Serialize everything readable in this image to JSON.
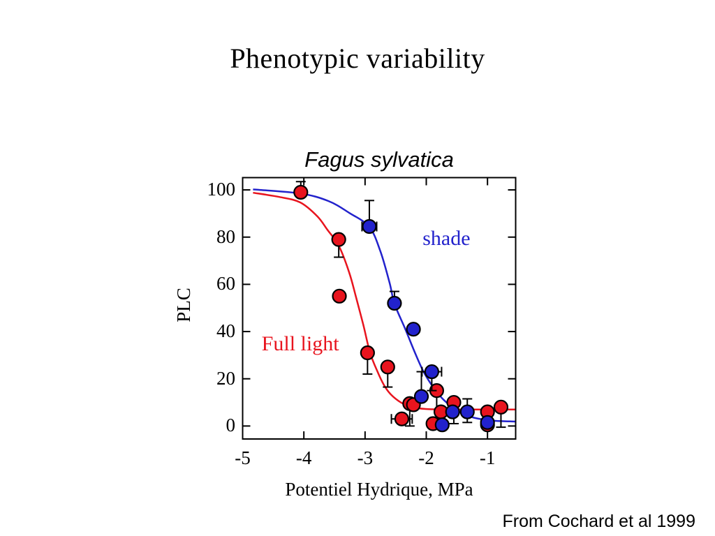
{
  "slide": {
    "title": "Phenotypic variability",
    "attribution": "From Cochard et al 1999"
  },
  "chart_data": {
    "type": "scatter",
    "title": "Fagus sylvatica",
    "xlabel": "Potentiel Hydrique, MPa",
    "ylabel": "PLC",
    "xlim": [
      -5,
      -0.54
    ],
    "ylim": [
      -5.5,
      105.2
    ],
    "x_ticks": [
      -5,
      -4,
      -3,
      -2,
      -1
    ],
    "y_ticks": [
      0,
      20,
      40,
      60,
      80,
      100
    ],
    "grid": false,
    "frame": "box-with-inward-ticks",
    "axis_color": "#000000",
    "annotations": [
      {
        "text": "shade",
        "color": "#2222cc",
        "x": -2.06,
        "y": 84.5
      },
      {
        "text": "Full light",
        "color": "#e8141e",
        "x": -4.69,
        "y": 39.7
      }
    ],
    "series": [
      {
        "name": "Full light",
        "color": "#e8141e",
        "marker": "circle",
        "points": [
          {
            "x": -4.05,
            "y": 99,
            "ehi": 4.5
          },
          {
            "x": -3.43,
            "y": 79,
            "elo": 7.5
          },
          {
            "x": -3.42,
            "y": 55
          },
          {
            "x": -2.96,
            "y": 31,
            "elo": 9
          },
          {
            "x": -2.63,
            "y": 25,
            "elo": 8.5
          },
          {
            "x": -2.4,
            "y": 3,
            "ex": 0.17
          },
          {
            "x": -2.27,
            "y": 9.5,
            "elo": 9.5
          },
          {
            "x": -2.21,
            "y": 9
          },
          {
            "x": -1.89,
            "y": 1
          },
          {
            "x": -1.83,
            "y": 15,
            "elo": 16
          },
          {
            "x": -1.76,
            "y": 6
          },
          {
            "x": -1.55,
            "y": 10,
            "elo": 9
          },
          {
            "x": -1.0,
            "y": 0.5
          },
          {
            "x": -1.0,
            "y": 6,
            "elo": 6.5
          },
          {
            "x": -0.78,
            "y": 8,
            "elo": 8.5
          }
        ],
        "curve": [
          [
            -4.83,
            98.8
          ],
          [
            -4.4,
            97.0
          ],
          [
            -4.06,
            94.7
          ],
          [
            -3.78,
            88.8
          ],
          [
            -3.61,
            82.9
          ],
          [
            -3.43,
            76.4
          ],
          [
            -3.26,
            65.1
          ],
          [
            -3.15,
            54.8
          ],
          [
            -3.03,
            43.0
          ],
          [
            -2.92,
            31.2
          ],
          [
            -2.8,
            23.2
          ],
          [
            -2.69,
            17.3
          ],
          [
            -2.58,
            13.4
          ],
          [
            -2.41,
            9.9
          ],
          [
            -2.24,
            8.1
          ],
          [
            -2.01,
            7.2
          ],
          [
            -1.55,
            7.0
          ],
          [
            -0.55,
            7.0
          ]
        ]
      },
      {
        "name": "shade",
        "color": "#2222cc",
        "marker": "circle",
        "points": [
          {
            "x": -2.93,
            "y": 84.5,
            "ehi": 11,
            "ex": 0.12
          },
          {
            "x": -2.52,
            "y": 52,
            "ehi": 5
          },
          {
            "x": -2.21,
            "y": 41
          },
          {
            "x": -2.08,
            "y": 12.5,
            "ehi": 10.5
          },
          {
            "x": -1.91,
            "y": 23,
            "ex": 0.16,
            "elo": 8
          },
          {
            "x": -1.74,
            "y": 0.5
          },
          {
            "x": -1.57,
            "y": 6
          },
          {
            "x": -1.33,
            "y": 6,
            "ehi": 5.5,
            "elo": 4.5
          },
          {
            "x": -1.0,
            "y": 1.5
          }
        ],
        "curve": [
          [
            -4.83,
            100.2
          ],
          [
            -4.06,
            98.5
          ],
          [
            -3.6,
            95.3
          ],
          [
            -3.26,
            90.3
          ],
          [
            -2.93,
            84.3
          ],
          [
            -2.75,
            74.0
          ],
          [
            -2.6,
            60.7
          ],
          [
            -2.52,
            51.8
          ],
          [
            -2.35,
            41.5
          ],
          [
            -2.21,
            32.6
          ],
          [
            -2.06,
            23.8
          ],
          [
            -1.91,
            17.3
          ],
          [
            -1.75,
            12.0
          ],
          [
            -1.57,
            7.8
          ],
          [
            -1.38,
            4.9
          ],
          [
            -1.15,
            3.1
          ],
          [
            -0.87,
            2.2
          ],
          [
            -0.55,
            1.9
          ]
        ]
      }
    ]
  }
}
